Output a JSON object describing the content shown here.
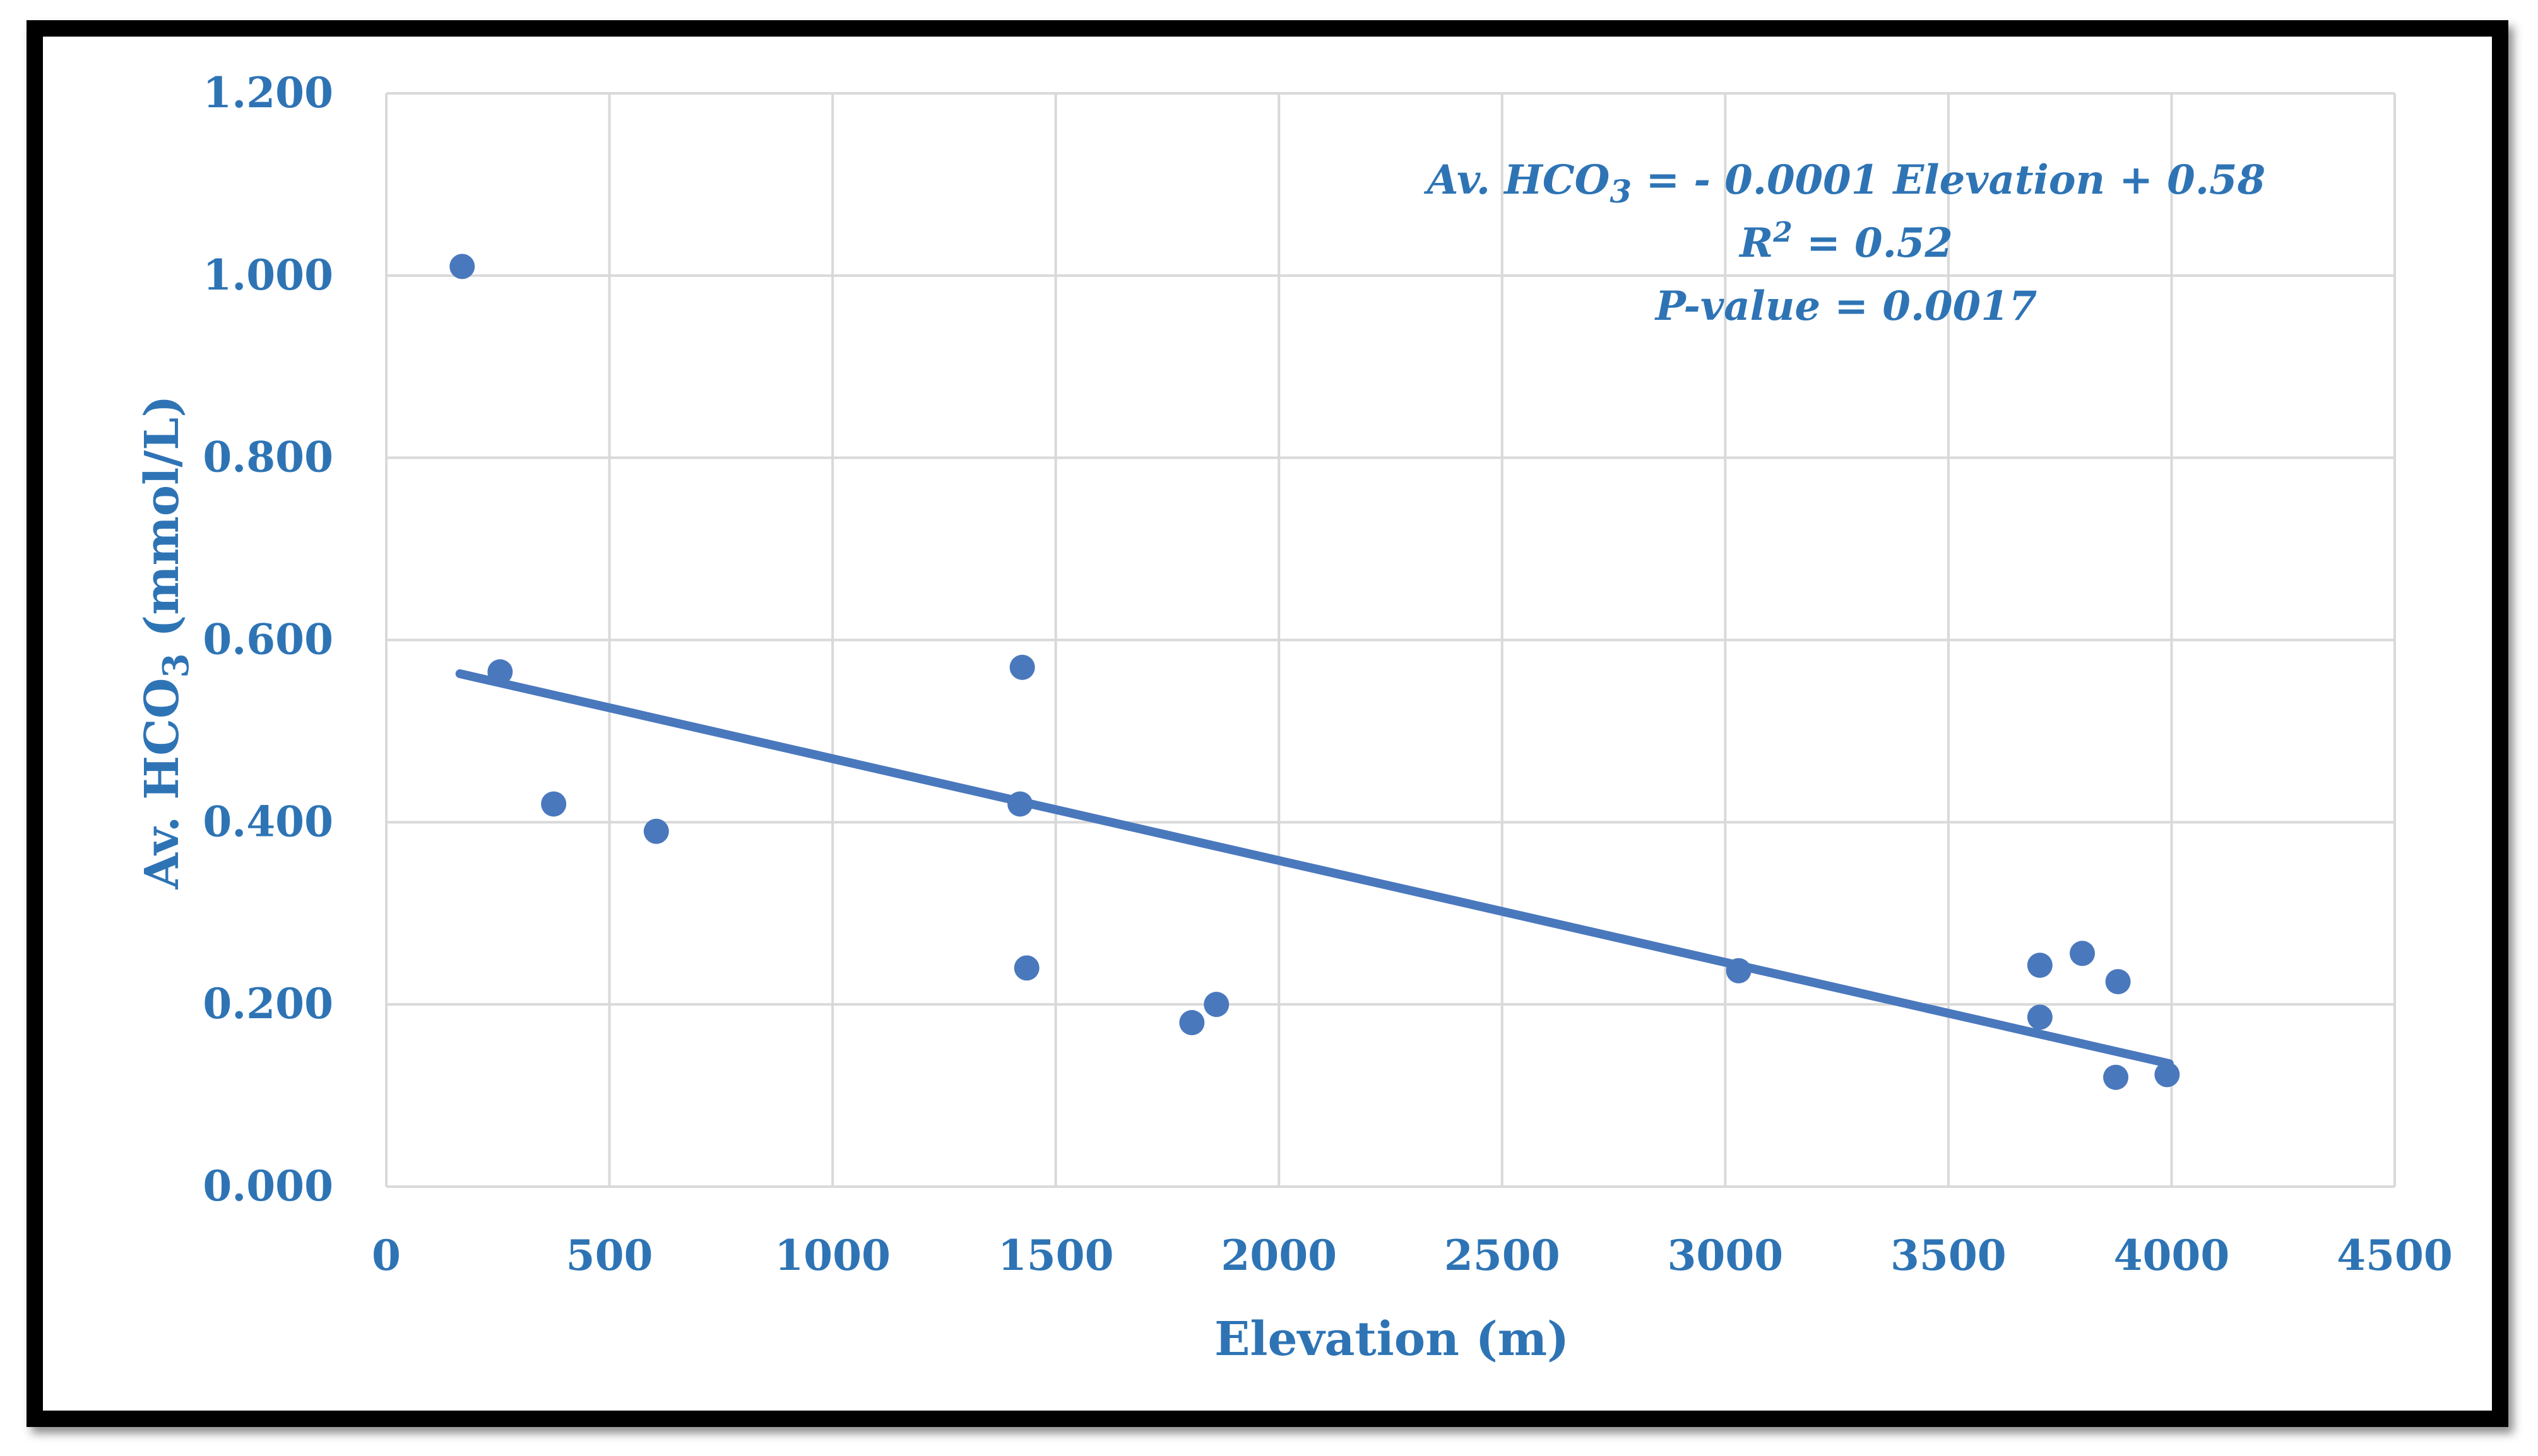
{
  "chart_data": {
    "type": "scatter",
    "xlabel": "Elevation (m)",
    "ylabel_main": "Av. HCO",
    "ylabel_sub": "3",
    "ylabel_unit": " (mmol/L)",
    "xlim": [
      0,
      4500
    ],
    "ylim": [
      0,
      1.2
    ],
    "x_ticks": [
      0,
      500,
      1000,
      1500,
      2000,
      2500,
      3000,
      3500,
      4000,
      4500
    ],
    "y_ticks": [
      0,
      0.2,
      0.4,
      0.6,
      0.8,
      1.0,
      1.2
    ],
    "x_tick_labels": [
      "0",
      "500",
      "1000",
      "1500",
      "2000",
      "2500",
      "3000",
      "3500",
      "4000",
      "4500"
    ],
    "y_tick_labels": [
      "0.000",
      "0.200",
      "0.400",
      "0.600",
      "0.800",
      "1.000",
      "1.200"
    ],
    "grid": true,
    "marker_color": "#4a78bd",
    "trendline_color": "#4a78bd",
    "text_color": "#2e74b5",
    "series": [
      {
        "name": "Av. HCO3",
        "points": [
          {
            "x": 170,
            "y": 1.01
          },
          {
            "x": 255,
            "y": 0.565
          },
          {
            "x": 375,
            "y": 0.42
          },
          {
            "x": 605,
            "y": 0.39
          },
          {
            "x": 1425,
            "y": 0.57
          },
          {
            "x": 1420,
            "y": 0.42
          },
          {
            "x": 1435,
            "y": 0.24
          },
          {
            "x": 1805,
            "y": 0.18
          },
          {
            "x": 1860,
            "y": 0.2
          },
          {
            "x": 3030,
            "y": 0.237
          },
          {
            "x": 3705,
            "y": 0.243
          },
          {
            "x": 3705,
            "y": 0.186
          },
          {
            "x": 3800,
            "y": 0.256
          },
          {
            "x": 3880,
            "y": 0.225
          },
          {
            "x": 3875,
            "y": 0.12
          },
          {
            "x": 3990,
            "y": 0.123
          }
        ]
      }
    ],
    "trendline": {
      "x0": 165,
      "y0": 0.563,
      "x1": 3995,
      "y1": 0.135
    },
    "annotations": {
      "equation_lhs_main": "Av. HCO",
      "equation_lhs_sub": "3",
      "equation_rhs": " = - 0.0001 Elevation + 0.58",
      "r2_main": "R",
      "r2_sup": "2",
      "r2_rest": " = 0.52",
      "pvalue": "P-value = 0.0017"
    }
  }
}
